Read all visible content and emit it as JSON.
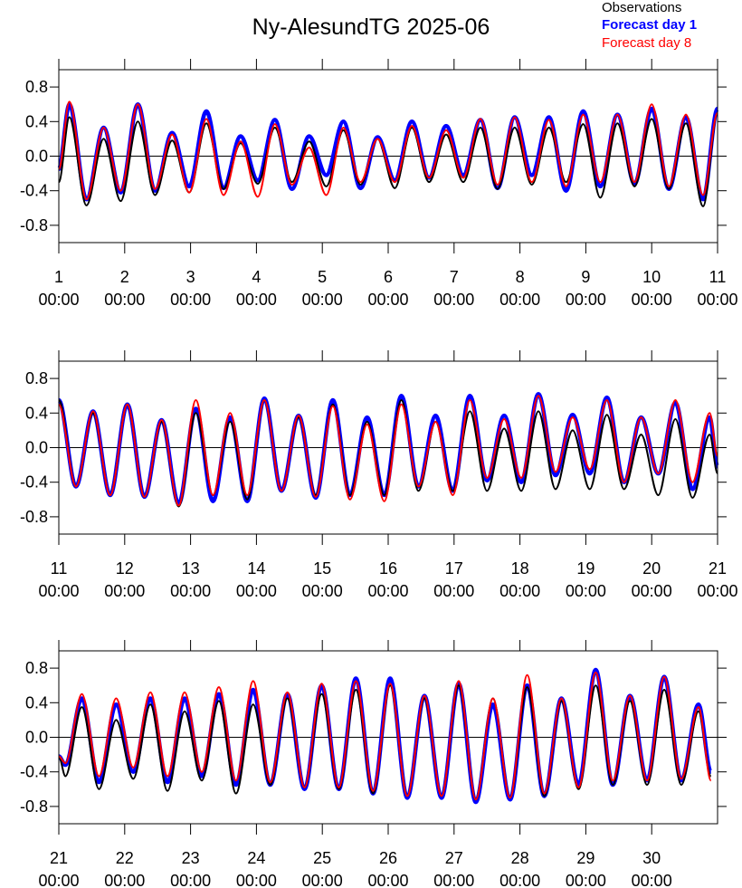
{
  "chart_data": [
    {
      "type": "line",
      "title": "Ny-AlesundTG 2025-06",
      "xlim": [
        1,
        11
      ],
      "xticks": [
        {
          "value": 1,
          "label": "1\n00:00"
        },
        {
          "value": 2,
          "label": "2\n00:00"
        },
        {
          "value": 3,
          "label": "3\n00:00"
        },
        {
          "value": 4,
          "label": "4\n00:00"
        },
        {
          "value": 5,
          "label": "5\n00:00"
        },
        {
          "value": 6,
          "label": "6\n00:00"
        },
        {
          "value": 7,
          "label": "7\n00:00"
        },
        {
          "value": 8,
          "label": "8\n00:00"
        },
        {
          "value": 9,
          "label": "9\n00:00"
        },
        {
          "value": 10,
          "label": "10\n00:00"
        },
        {
          "value": 11,
          "label": "11\n00:00"
        }
      ],
      "ylim": [
        -1,
        1
      ],
      "yticks": [
        0.8,
        0.4,
        {
          "value": 0,
          "label": "0.0"
        },
        -0.4,
        -0.8
      ],
      "x": [
        1.0,
        1.16,
        1.42,
        1.68,
        1.94,
        2.2,
        2.46,
        2.72,
        2.98,
        3.24,
        3.5,
        3.76,
        4.02,
        4.28,
        4.54,
        4.8,
        5.06,
        5.32,
        5.58,
        5.84,
        6.1,
        6.36,
        6.62,
        6.88,
        7.14,
        7.4,
        7.66,
        7.92,
        8.18,
        8.44,
        8.7,
        8.96,
        9.22,
        9.48,
        9.74,
        10.0,
        10.26,
        10.52,
        10.78,
        11.0
      ],
      "series": [
        {
          "name": "Observations",
          "color": "#000000",
          "values": [
            -0.3,
            0.45,
            -0.57,
            0.2,
            -0.52,
            0.4,
            -0.45,
            0.18,
            -0.42,
            0.38,
            -0.38,
            0.15,
            -0.32,
            0.33,
            -0.3,
            0.17,
            -0.35,
            0.3,
            -0.33,
            0.2,
            -0.37,
            0.33,
            -0.3,
            0.25,
            -0.3,
            0.33,
            -0.38,
            0.33,
            -0.33,
            0.33,
            -0.3,
            0.37,
            -0.48,
            0.38,
            -0.35,
            0.43,
            -0.38,
            0.38,
            -0.58,
            0.5
          ]
        },
        {
          "name": "Forecast day 1",
          "color": "#0000ff",
          "values": [
            -0.15,
            0.6,
            -0.5,
            0.33,
            -0.42,
            0.6,
            -0.4,
            0.27,
            -0.35,
            0.52,
            -0.37,
            0.23,
            -0.28,
            0.42,
            -0.38,
            0.23,
            -0.22,
            0.4,
            -0.37,
            0.22,
            -0.28,
            0.4,
            -0.25,
            0.35,
            -0.22,
            0.42,
            -0.37,
            0.45,
            -0.22,
            0.45,
            -0.4,
            0.52,
            -0.35,
            0.48,
            -0.32,
            0.55,
            -0.38,
            0.45,
            -0.5,
            0.55
          ]
        },
        {
          "name": "Forecast day 8",
          "color": "#ff0000",
          "values": [
            -0.15,
            0.63,
            -0.5,
            0.33,
            -0.4,
            0.6,
            -0.38,
            0.25,
            -0.42,
            0.43,
            -0.45,
            0.17,
            -0.47,
            0.37,
            -0.33,
            0.1,
            -0.45,
            0.33,
            -0.3,
            0.2,
            -0.3,
            0.35,
            -0.25,
            0.3,
            -0.25,
            0.43,
            -0.33,
            0.45,
            -0.3,
            0.42,
            -0.35,
            0.48,
            -0.3,
            0.48,
            -0.3,
            0.6,
            -0.35,
            0.48,
            -0.45,
            0.5
          ]
        }
      ]
    },
    {
      "type": "line",
      "xlim": [
        11,
        21
      ],
      "xticks": [
        {
          "value": 11,
          "label": "11\n00:00"
        },
        {
          "value": 12,
          "label": "12\n00:00"
        },
        {
          "value": 13,
          "label": "13\n00:00"
        },
        {
          "value": 14,
          "label": "14\n00:00"
        },
        {
          "value": 15,
          "label": "15\n00:00"
        },
        {
          "value": 16,
          "label": "16\n00:00"
        },
        {
          "value": 17,
          "label": "17\n00:00"
        },
        {
          "value": 18,
          "label": "18\n00:00"
        },
        {
          "value": 19,
          "label": "19\n00:00"
        },
        {
          "value": 20,
          "label": "20\n00:00"
        },
        {
          "value": 21,
          "label": "21\n00:00"
        }
      ],
      "ylim": [
        -1,
        1
      ],
      "yticks": [
        0.8,
        0.4,
        {
          "value": 0,
          "label": "0.0"
        },
        -0.4,
        -0.8
      ],
      "x": [
        11.0,
        11.26,
        11.52,
        11.78,
        12.04,
        12.3,
        12.56,
        12.82,
        13.08,
        13.34,
        13.6,
        13.86,
        14.12,
        14.38,
        14.64,
        14.9,
        15.16,
        15.42,
        15.68,
        15.94,
        16.2,
        16.46,
        16.72,
        16.98,
        17.24,
        17.5,
        17.76,
        18.02,
        18.28,
        18.54,
        18.8,
        19.06,
        19.32,
        19.58,
        19.84,
        20.1,
        20.36,
        20.62,
        20.88,
        21.0
      ],
      "series": [
        {
          "color": "#000000",
          "values": [
            0.55,
            -0.45,
            0.4,
            -0.55,
            0.5,
            -0.57,
            0.3,
            -0.68,
            0.4,
            -0.55,
            0.3,
            -0.6,
            0.55,
            -0.5,
            0.35,
            -0.55,
            0.5,
            -0.55,
            0.3,
            -0.55,
            0.55,
            -0.5,
            0.3,
            -0.5,
            0.42,
            -0.5,
            0.22,
            -0.5,
            0.42,
            -0.48,
            0.2,
            -0.48,
            0.38,
            -0.48,
            0.15,
            -0.55,
            0.33,
            -0.58,
            0.15,
            -0.3
          ]
        },
        {
          "color": "#0000ff",
          "values": [
            0.55,
            -0.45,
            0.42,
            -0.55,
            0.5,
            -0.57,
            0.32,
            -0.65,
            0.45,
            -0.62,
            0.35,
            -0.62,
            0.57,
            -0.5,
            0.37,
            -0.58,
            0.55,
            -0.55,
            0.35,
            -0.55,
            0.6,
            -0.45,
            0.37,
            -0.5,
            0.6,
            -0.38,
            0.37,
            -0.4,
            0.62,
            -0.32,
            0.38,
            -0.3,
            0.58,
            -0.4,
            0.35,
            -0.3,
            0.52,
            -0.48,
            0.35,
            -0.22
          ]
        },
        {
          "color": "#ff0000",
          "values": [
            0.5,
            -0.45,
            0.42,
            -0.55,
            0.5,
            -0.57,
            0.32,
            -0.67,
            0.55,
            -0.55,
            0.4,
            -0.55,
            0.55,
            -0.5,
            0.37,
            -0.57,
            0.48,
            -0.6,
            0.27,
            -0.62,
            0.5,
            -0.45,
            0.3,
            -0.55,
            0.55,
            -0.35,
            0.33,
            -0.35,
            0.6,
            -0.28,
            0.35,
            -0.25,
            0.55,
            -0.4,
            0.35,
            -0.3,
            0.55,
            -0.4,
            0.4,
            -0.1
          ]
        }
      ]
    },
    {
      "type": "line",
      "xlim": [
        21,
        31
      ],
      "xticks": [
        {
          "value": 21,
          "label": "21\n00:00"
        },
        {
          "value": 22,
          "label": "22\n00:00"
        },
        {
          "value": 23,
          "label": "23\n00:00"
        },
        {
          "value": 24,
          "label": "24\n00:00"
        },
        {
          "value": 25,
          "label": "25\n00:00"
        },
        {
          "value": 26,
          "label": "26\n00:00"
        },
        {
          "value": 27,
          "label": "27\n00:00"
        },
        {
          "value": 28,
          "label": "28\n00:00"
        },
        {
          "value": 29,
          "label": "29\n00:00"
        },
        {
          "value": 30,
          "label": "30\n00:00"
        }
      ],
      "ylim": [
        -1,
        1
      ],
      "yticks": [
        0.8,
        0.4,
        {
          "value": 0,
          "label": "0.0"
        },
        -0.4,
        -0.8
      ],
      "x": [
        21.0,
        21.1,
        21.35,
        21.61,
        21.87,
        22.13,
        22.39,
        22.65,
        22.91,
        23.17,
        23.43,
        23.69,
        23.95,
        24.21,
        24.47,
        24.73,
        24.99,
        25.25,
        25.51,
        25.77,
        26.03,
        26.29,
        26.55,
        26.81,
        27.07,
        27.33,
        27.59,
        27.85,
        28.11,
        28.37,
        28.63,
        28.89,
        29.15,
        29.41,
        29.67,
        29.93,
        30.19,
        30.45,
        30.71,
        30.9
      ],
      "series": [
        {
          "color": "#000000",
          "values": [
            -0.22,
            -0.45,
            0.35,
            -0.6,
            0.2,
            -0.48,
            0.38,
            -0.62,
            0.3,
            -0.5,
            0.42,
            -0.65,
            0.38,
            -0.55,
            0.45,
            -0.58,
            0.5,
            -0.6,
            0.55,
            -0.65,
            0.6,
            -0.68,
            0.45,
            -0.68,
            0.6,
            -0.72,
            0.45,
            -0.7,
            0.58,
            -0.68,
            0.42,
            -0.6,
            0.6,
            -0.55,
            0.42,
            -0.55,
            0.55,
            -0.55,
            0.3,
            -0.45
          ]
        },
        {
          "color": "#0000ff",
          "values": [
            -0.22,
            -0.32,
            0.45,
            -0.52,
            0.38,
            -0.4,
            0.45,
            -0.52,
            0.45,
            -0.45,
            0.5,
            -0.55,
            0.55,
            -0.55,
            0.5,
            -0.6,
            0.6,
            -0.6,
            0.68,
            -0.65,
            0.68,
            -0.7,
            0.48,
            -0.7,
            0.62,
            -0.75,
            0.38,
            -0.72,
            0.6,
            -0.68,
            0.45,
            -0.55,
            0.78,
            -0.55,
            0.48,
            -0.5,
            0.7,
            -0.5,
            0.38,
            -0.4
          ]
        },
        {
          "color": "#ff0000",
          "values": [
            -0.22,
            -0.3,
            0.5,
            -0.45,
            0.45,
            -0.35,
            0.52,
            -0.45,
            0.52,
            -0.4,
            0.58,
            -0.5,
            0.65,
            -0.52,
            0.52,
            -0.58,
            0.62,
            -0.58,
            0.65,
            -0.62,
            0.62,
            -0.68,
            0.48,
            -0.68,
            0.65,
            -0.72,
            0.45,
            -0.7,
            0.72,
            -0.65,
            0.45,
            -0.58,
            0.75,
            -0.5,
            0.48,
            -0.5,
            0.7,
            -0.48,
            0.35,
            -0.5
          ]
        }
      ]
    }
  ]
}
